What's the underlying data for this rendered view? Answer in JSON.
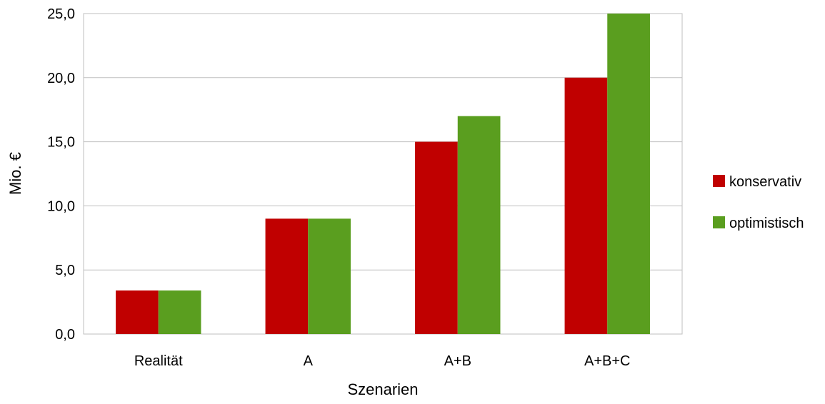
{
  "chart_data": {
    "type": "bar",
    "categories": [
      "Realität",
      "A",
      "A+B",
      "A+B+C"
    ],
    "series": [
      {
        "name": "konservativ",
        "color": "#c00000",
        "values": [
          3.4,
          9.0,
          15.0,
          20.0
        ]
      },
      {
        "name": "optimistisch",
        "color": "#5a9e1f",
        "values": [
          3.4,
          9.0,
          17.0,
          25.0
        ]
      }
    ],
    "xlabel": "Szenarien",
    "ylabel": "Mio. €",
    "ylim": [
      0,
      25
    ],
    "yticks": [
      "0,0",
      "5,0",
      "10,0",
      "15,0",
      "20,0",
      "25,0"
    ],
    "grid": true,
    "legend_position": "right"
  }
}
